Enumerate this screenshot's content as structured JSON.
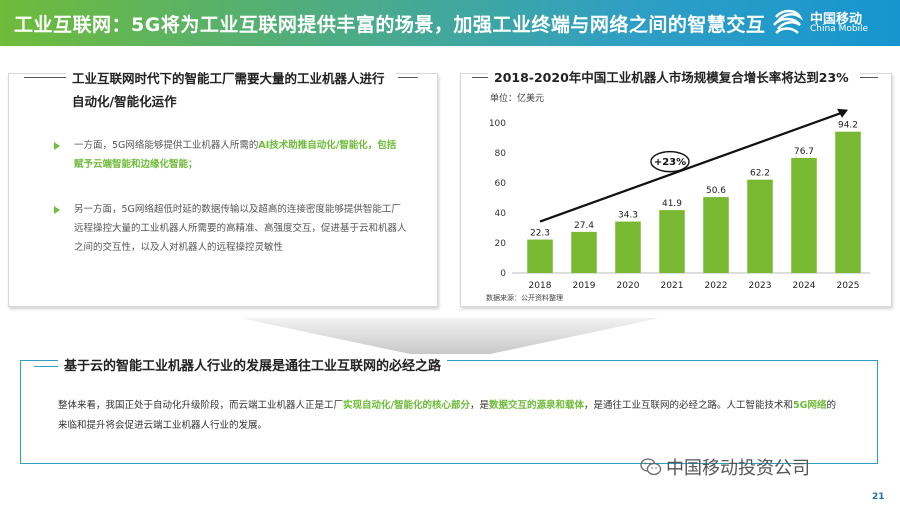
{
  "header": {
    "title": "工业互联网：5G将为工业互联网提供丰富的场景，加强工业终端与网络之间的智慧交互",
    "logo_cn": "中国移动",
    "logo_en": "China Mobile"
  },
  "left_panel": {
    "heading": "工业互联网时代下的智能工厂需要大量的工业机器人进行自动化/智能化运作",
    "bullet1_prefix": "一方面，5G网络能够提供工业机器人所需的",
    "bullet1_highlight": "AI技术助推自动化/智能化，包括赋予云端智能和边缘化智能；",
    "bullet2": "另一方面，5G网络超低时延的数据传输以及超高的连接密度能够提供智能工厂远程操控大量的工业机器人所需要的高精准、高强度交互，促进基于云和机器人之间的交互性，以及人对机器人的远程操控灵敏性"
  },
  "right_panel": {
    "heading": "2018-2020年中国工业机器人市场规模复合增长率将达到23%",
    "unit": "单位：亿美元",
    "source": "数据来源：公开资料整理"
  },
  "chart_data": {
    "type": "bar",
    "categories": [
      "2018",
      "2019",
      "2020",
      "2021",
      "2022",
      "2023",
      "2024",
      "2025"
    ],
    "values": [
      22.3,
      27.4,
      34.3,
      41.9,
      50.6,
      62.2,
      76.7,
      94.2
    ],
    "ylim": [
      0,
      100
    ],
    "yticks": [
      0,
      20,
      40,
      60,
      80,
      100
    ],
    "annotation": "+23%",
    "bar_color": "#78b833",
    "grid": false
  },
  "bottom": {
    "heading": "基于云的智能工业机器人行业的发展是通往工业互联网的必经之路",
    "text_a": "整体来看，我国正处于自动化升级阶段，而云端工业机器人正是工厂",
    "text_hl1": "实现自动化/智能化的核心部分",
    "text_b": "，是",
    "text_hl2": "数据交互的源泉和载体",
    "text_c": "，是通往工业互联网的必经之路。人工智能技术和",
    "text_hl3": "5G网络",
    "text_d": "的来临和提升将会促进云端工业机器人行业的发展。"
  },
  "footer": {
    "wechat": "中国移动投资公司",
    "page": "21"
  }
}
